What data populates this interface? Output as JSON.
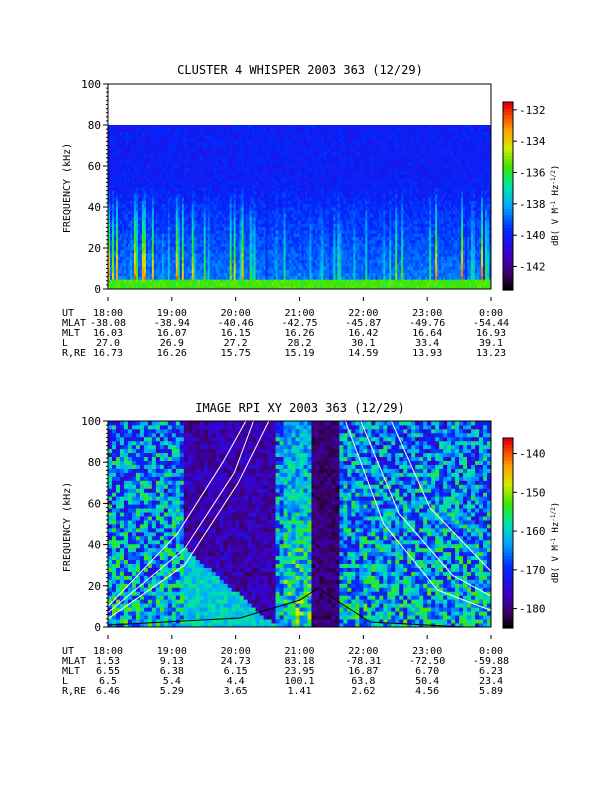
{
  "chart_data": [
    {
      "type": "heatmap",
      "title": "CLUSTER 4 WHISPER 2003 363 (12/29)",
      "ylabel": "FREQUENCY (kHz)",
      "ylim": [
        0,
        100
      ],
      "yticks": [
        "0",
        "20",
        "40",
        "60",
        "80",
        "100"
      ],
      "data_ceiling_khz": 80,
      "colorbar": {
        "label": "dB( V M",
        "label_sup1": "-1",
        "label_mid": " Hz",
        "label_sup2": "-1/2",
        "label_end": ")",
        "range": [
          -143.5,
          -131.5
        ],
        "ticks": [
          "-132",
          "-134",
          "-136",
          "-138",
          "-140",
          "-142"
        ],
        "tick_values": [
          -132,
          -134,
          -136,
          -138,
          -140,
          -142
        ]
      },
      "ephemeris": {
        "row_labels": [
          "UT",
          "MLAT",
          "MLT",
          "L",
          "R,RE"
        ],
        "times": [
          "18:00",
          "19:00",
          "20:00",
          "21:00",
          "22:00",
          "23:00",
          "0:00"
        ],
        "rows": [
          [
            "-38.08",
            "-38.94",
            "-40.46",
            "-42.75",
            "-45.87",
            "-49.76",
            "-54.44"
          ],
          [
            "16.03",
            "16.07",
            "16.15",
            "16.26",
            "16.42",
            "16.64",
            "16.93"
          ],
          [
            "27.0",
            "26.9",
            "27.2",
            "28.2",
            "30.1",
            "33.4",
            "39.1"
          ],
          [
            "16.73",
            "16.26",
            "15.75",
            "15.19",
            "14.59",
            "13.93",
            "13.23"
          ]
        ]
      }
    },
    {
      "type": "heatmap",
      "title": "IMAGE RPI XY 2003 363 (12/29)",
      "ylabel": "FREQUENCY (kHz)",
      "ylim": [
        0,
        100
      ],
      "yticks": [
        "0",
        "20",
        "40",
        "60",
        "80",
        "100"
      ],
      "colorbar": {
        "label": "dB( V M",
        "label_sup1": "-1",
        "label_mid": " Hz",
        "label_sup2": "-1/2",
        "label_end": ")",
        "range": [
          -185,
          -136
        ],
        "ticks": [
          "-140",
          "-150",
          "-160",
          "-170",
          "-180"
        ],
        "tick_values": [
          -140,
          -150,
          -160,
          -170,
          -180
        ]
      },
      "ephemeris": {
        "row_labels": [
          "UT",
          "MLAT",
          "MLT",
          "L",
          "R,RE"
        ],
        "times": [
          "18:00",
          "19:00",
          "20:00",
          "21:00",
          "22:00",
          "23:00",
          "0:00"
        ],
        "rows": [
          [
            "1.53",
            "9.13",
            "24.73",
            "83.18",
            "-78.31",
            "-72.50",
            "-59.88"
          ],
          [
            "6.55",
            "6.38",
            "6.15",
            "23.95",
            "16.87",
            "6.70",
            "6.23"
          ],
          [
            "6.5",
            "5.4",
            "4.4",
            "100.1",
            "63.8",
            "50.4",
            "23.4"
          ],
          [
            "6.46",
            "5.29",
            "3.65",
            "1.41",
            "2.62",
            "4.56",
            "5.89"
          ]
        ]
      }
    }
  ]
}
